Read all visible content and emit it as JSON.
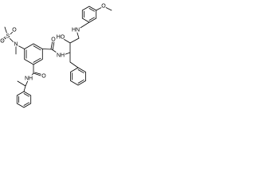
{
  "atoms": {
    "labels": [
      "O",
      "HN",
      "HO",
      "O",
      "NH",
      "N",
      "S",
      "O",
      "O",
      "O",
      "NH"
    ]
  }
}
